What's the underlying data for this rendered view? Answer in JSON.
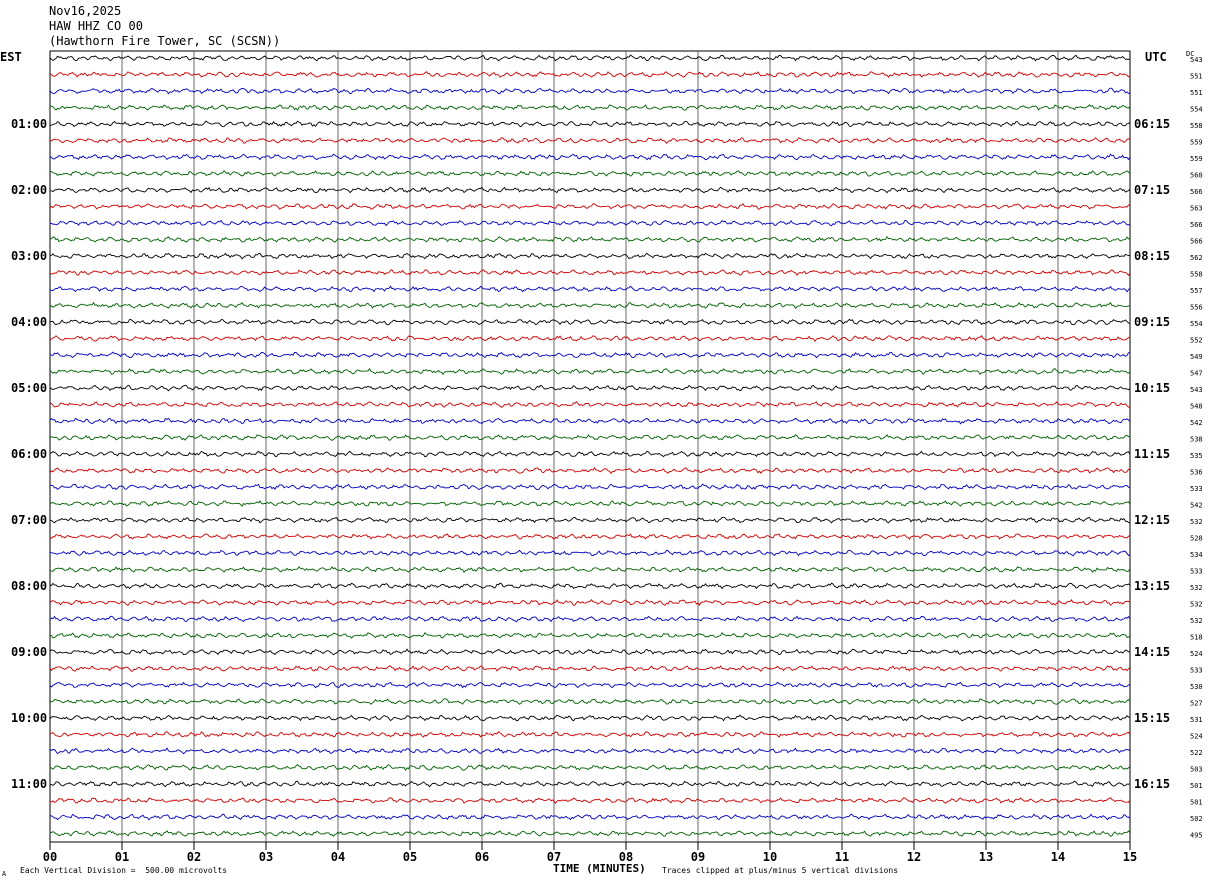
{
  "header": {
    "date": "Nov16,2025",
    "station": "HAW HHZ CO 00",
    "location": "(Hawthorn Fire Tower, SC (SCSN))"
  },
  "left_tz": "EST",
  "right_tz": "UTC",
  "dc_header": "DC",
  "footer": {
    "left_note": "Each Vertical Division =  500.00 microvolts",
    "x_label": "TIME (MINUTES)",
    "right_note": "Traces clipped at plus/minus 5 vertical divisions",
    "mark": "A"
  },
  "colors": [
    "#000000",
    "#d00000",
    "#0000c0",
    "#006000"
  ],
  "chart_data": {
    "type": "line",
    "title": "HAW HHZ CO 00",
    "xlabel": "TIME (MINUTES)",
    "ylabel": "",
    "xlim": [
      0,
      15
    ],
    "x_ticks": [
      "00",
      "01",
      "02",
      "03",
      "04",
      "05",
      "06",
      "07",
      "08",
      "09",
      "10",
      "11",
      "12",
      "13",
      "14",
      "15"
    ],
    "left_hour_labels": [
      "01:00",
      "02:00",
      "03:00",
      "04:00",
      "05:00",
      "06:00",
      "07:00",
      "08:00",
      "09:00",
      "10:00",
      "11:00"
    ],
    "right_hour_labels": [
      "06:15",
      "07:15",
      "08:15",
      "09:15",
      "10:15",
      "11:15",
      "12:15",
      "13:15",
      "14:15",
      "15:15",
      "16:15"
    ],
    "dc_offsets": [
      543,
      551,
      551,
      554,
      558,
      559,
      559,
      560,
      566,
      563,
      566,
      566,
      562,
      558,
      557,
      556,
      554,
      552,
      549,
      547,
      543,
      548,
      542,
      538,
      535,
      536,
      533,
      542,
      532,
      528,
      534,
      533,
      532,
      532,
      532,
      518,
      524,
      533,
      530,
      527,
      531,
      524,
      522,
      503,
      501,
      501,
      502,
      495
    ],
    "trace_count": 48,
    "minutes_per_trace": 15,
    "grid": true
  }
}
